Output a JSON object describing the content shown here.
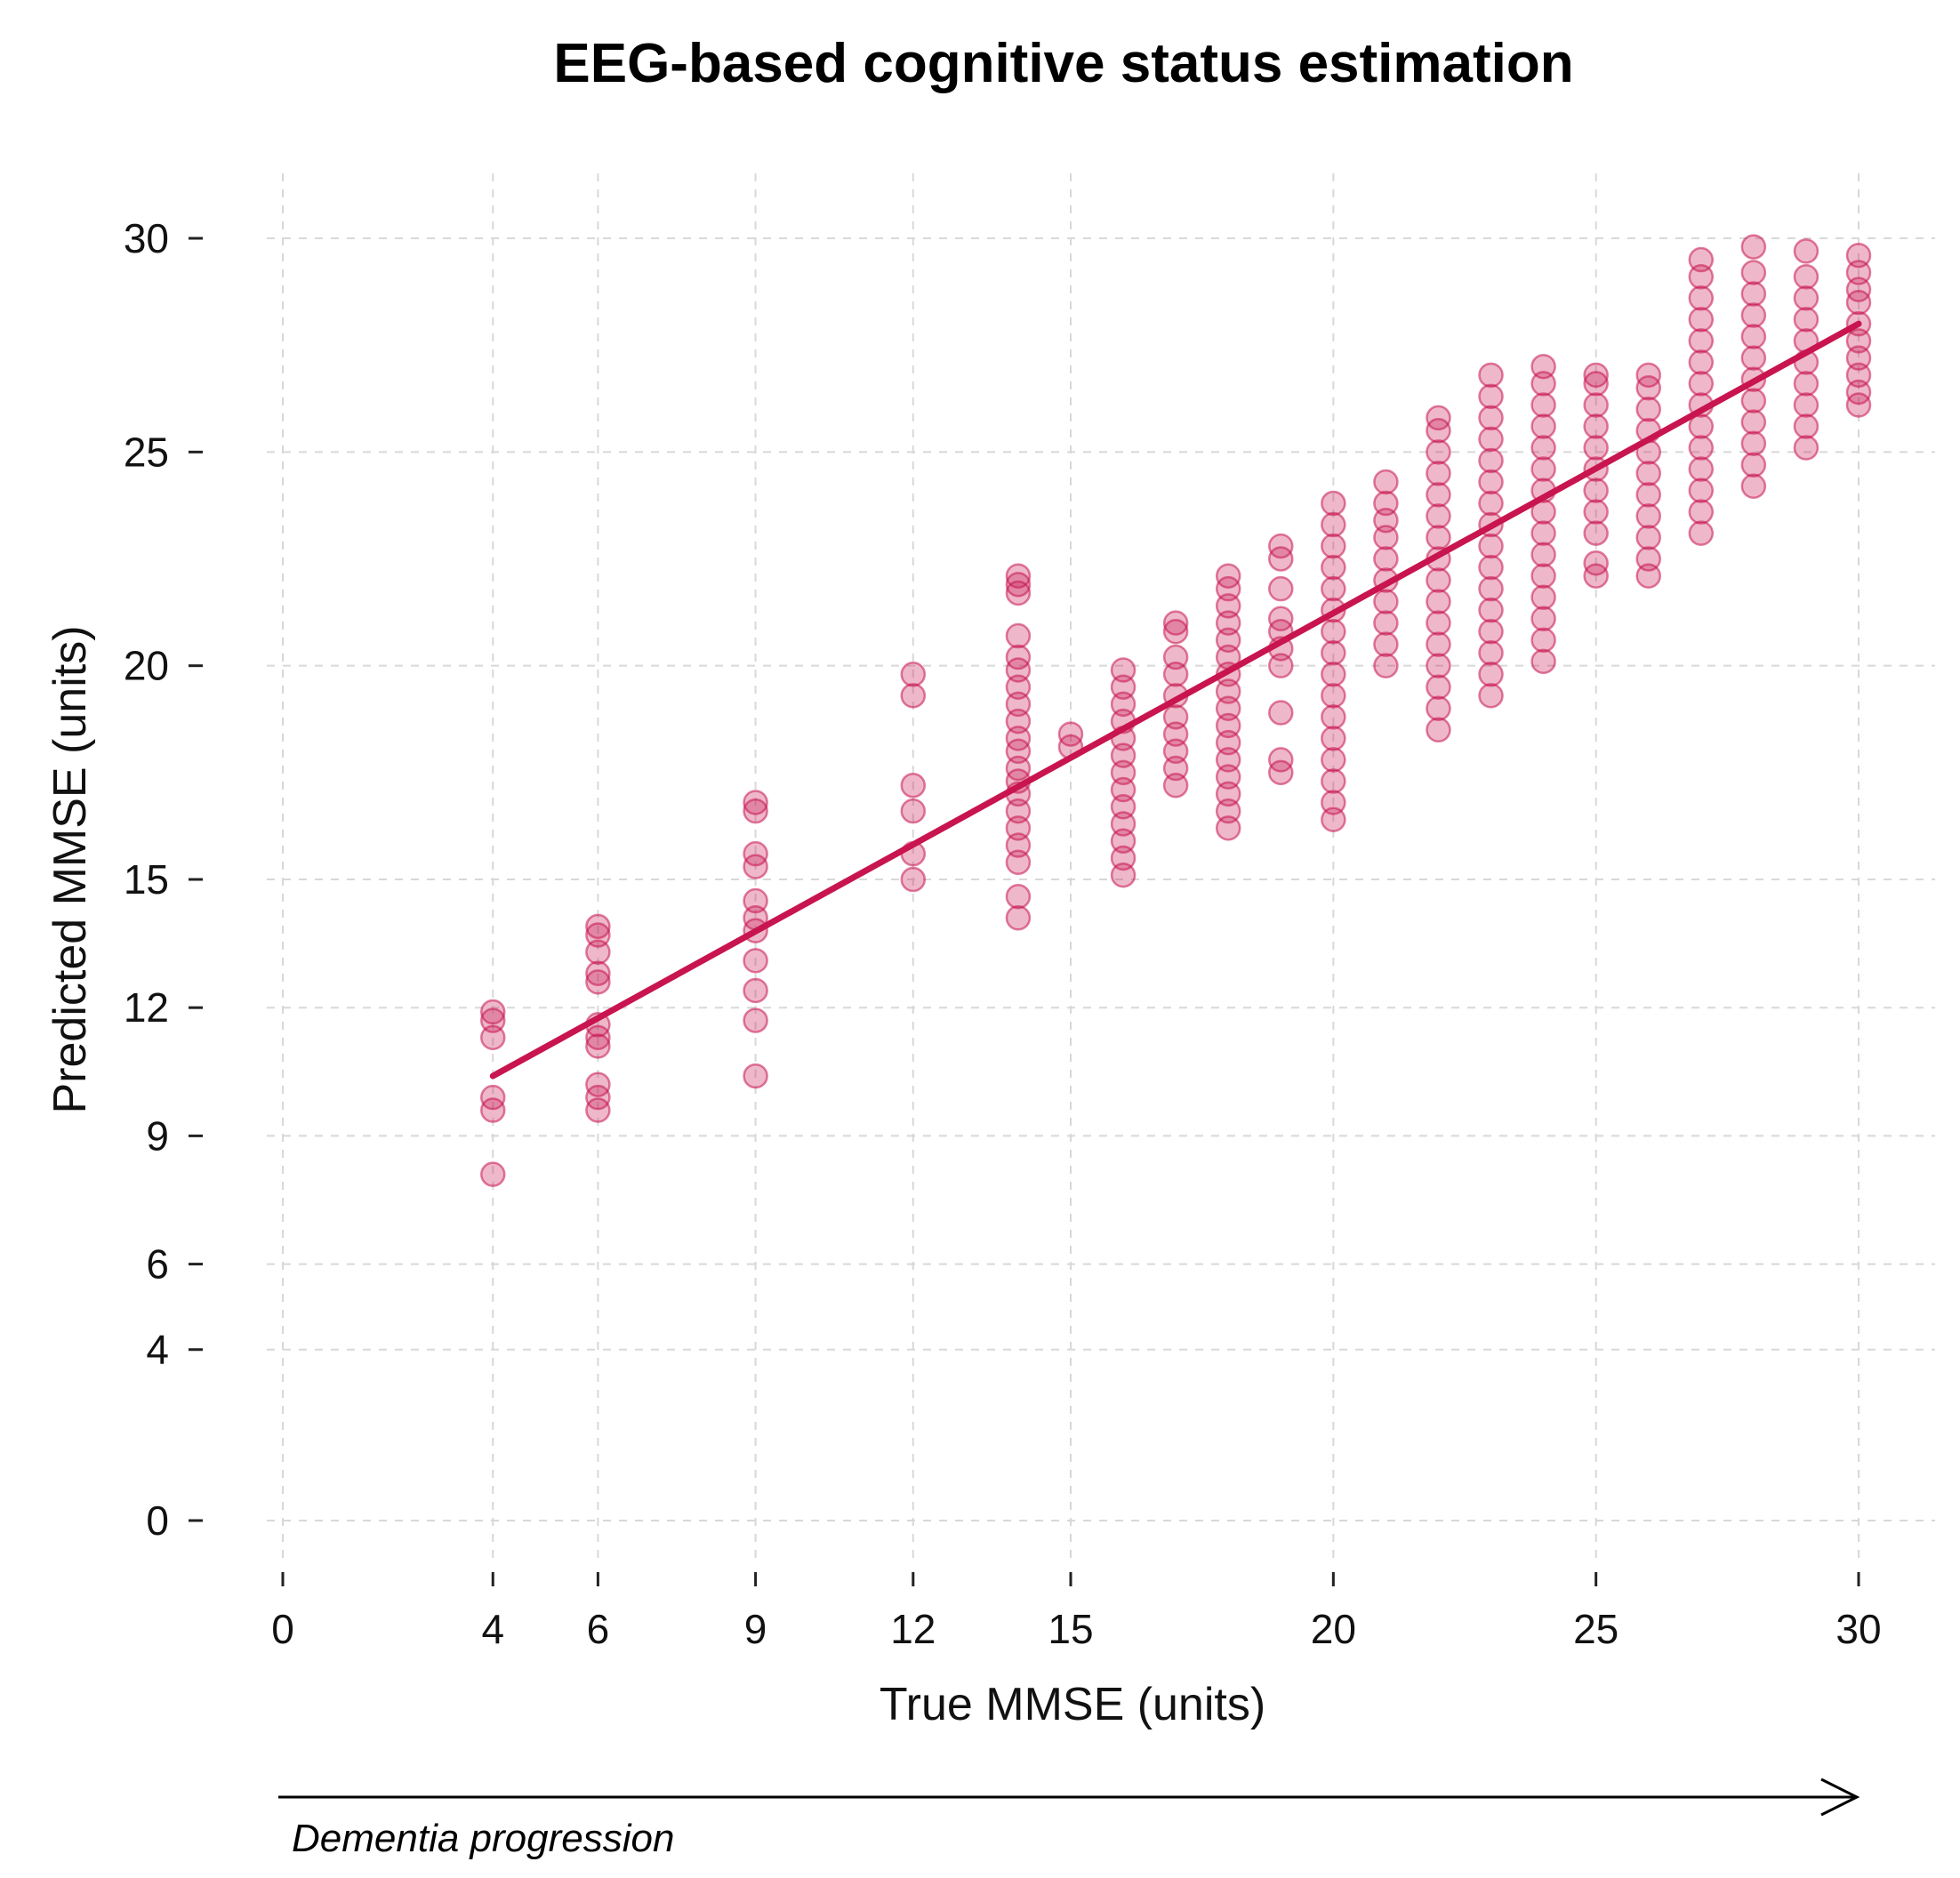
{
  "chart_data": {
    "type": "scatter",
    "title": "EEG-based cognitive status estimation",
    "xlabel": "True MMSE (units)",
    "ylabel": "Predicted MMSE (units)",
    "xlim": [
      0,
      30
    ],
    "ylim": [
      0,
      30
    ],
    "xticks": [
      0,
      4,
      6,
      9,
      12,
      15,
      20,
      25,
      30
    ],
    "yticks": [
      0,
      4,
      6,
      9,
      12,
      15,
      20,
      25,
      30
    ],
    "grid": true,
    "legend": "none",
    "point_color": "#c8144f",
    "line_color": "#c8144f",
    "fit_line": {
      "x": [
        4,
        30
      ],
      "y": [
        10.4,
        28.0
      ]
    },
    "points": [
      {
        "x": 4,
        "y": [
          8.1,
          9.6,
          9.9,
          11.3,
          11.7,
          11.9
        ]
      },
      {
        "x": 6,
        "y": [
          9.6,
          9.9,
          10.2,
          11.1,
          11.3,
          11.6,
          12.6,
          12.8,
          13.3,
          13.7,
          13.9
        ]
      },
      {
        "x": 9,
        "y": [
          10.4,
          11.7,
          12.4,
          13.1,
          13.8,
          14.1,
          14.5,
          15.3,
          15.6,
          16.6,
          16.8
        ]
      },
      {
        "x": 12,
        "y": [
          15.0,
          15.6,
          16.6,
          17.2,
          19.3,
          19.8
        ]
      },
      {
        "x": 14,
        "y": [
          14.1,
          14.6,
          15.4,
          15.8,
          16.2,
          16.6,
          17.0,
          17.3,
          17.6,
          18.0,
          18.3,
          18.7,
          19.1,
          19.5,
          19.9,
          20.2,
          20.7,
          21.7,
          21.9,
          22.1
        ]
      },
      {
        "x": 15,
        "y": [
          18.1,
          18.4
        ]
      },
      {
        "x": 16,
        "y": [
          15.1,
          15.5,
          15.9,
          16.3,
          16.7,
          17.1,
          17.5,
          17.9,
          18.3,
          18.7,
          19.1,
          19.5,
          19.9
        ]
      },
      {
        "x": 17,
        "y": [
          17.2,
          17.6,
          18.0,
          18.4,
          18.8,
          19.3,
          19.8,
          20.2,
          20.8,
          21.0
        ]
      },
      {
        "x": 18,
        "y": [
          16.2,
          16.6,
          17.0,
          17.4,
          17.8,
          18.2,
          18.6,
          19.0,
          19.4,
          19.8,
          20.2,
          20.6,
          21.0,
          21.4,
          21.8,
          22.1
        ]
      },
      {
        "x": 19,
        "y": [
          17.5,
          17.8,
          18.9,
          20.0,
          20.4,
          20.8,
          21.1,
          21.8,
          22.5,
          22.8
        ]
      },
      {
        "x": 20,
        "y": [
          16.4,
          16.8,
          17.3,
          17.8,
          18.3,
          18.8,
          19.3,
          19.8,
          20.3,
          20.8,
          21.3,
          21.8,
          22.3,
          22.8,
          23.3,
          23.8
        ]
      },
      {
        "x": 21,
        "y": [
          20.0,
          20.5,
          21.0,
          21.5,
          22.0,
          22.5,
          23.0,
          23.4,
          23.8,
          24.3
        ]
      },
      {
        "x": 22,
        "y": [
          18.5,
          19.0,
          19.5,
          20.0,
          20.5,
          21.0,
          21.5,
          22.0,
          22.5,
          23.0,
          23.5,
          24.0,
          24.5,
          25.0,
          25.5,
          25.8
        ]
      },
      {
        "x": 23,
        "y": [
          19.3,
          19.8,
          20.3,
          20.8,
          21.3,
          21.8,
          22.3,
          22.8,
          23.3,
          23.8,
          24.3,
          24.8,
          25.3,
          25.8,
          26.3,
          26.8
        ]
      },
      {
        "x": 24,
        "y": [
          20.1,
          20.6,
          21.1,
          21.6,
          22.1,
          22.6,
          23.1,
          23.6,
          24.1,
          24.6,
          25.1,
          25.6,
          26.1,
          26.6,
          27.0
        ]
      },
      {
        "x": 25,
        "y": [
          22.1,
          22.4,
          23.1,
          23.6,
          24.1,
          24.6,
          25.1,
          25.6,
          26.1,
          26.6,
          26.8
        ]
      },
      {
        "x": 26,
        "y": [
          22.1,
          22.5,
          23.0,
          23.5,
          24.0,
          24.5,
          25.0,
          25.5,
          26.0,
          26.5,
          26.8
        ]
      },
      {
        "x": 27,
        "y": [
          23.1,
          23.6,
          24.1,
          24.6,
          25.1,
          25.6,
          26.1,
          26.6,
          27.1,
          27.6,
          28.1,
          28.6,
          29.1,
          29.5
        ]
      },
      {
        "x": 28,
        "y": [
          24.2,
          24.7,
          25.2,
          25.7,
          26.2,
          26.7,
          27.2,
          27.7,
          28.2,
          28.7,
          29.2,
          29.8
        ]
      },
      {
        "x": 29,
        "y": [
          25.1,
          25.6,
          26.1,
          26.6,
          27.1,
          27.6,
          28.1,
          28.6,
          29.1,
          29.7
        ]
      },
      {
        "x": 30,
        "y": [
          26.1,
          26.4,
          26.8,
          27.2,
          27.6,
          28.0,
          28.5,
          28.8,
          29.2,
          29.6
        ]
      }
    ]
  },
  "annotation": {
    "text": "Dementia progression"
  }
}
